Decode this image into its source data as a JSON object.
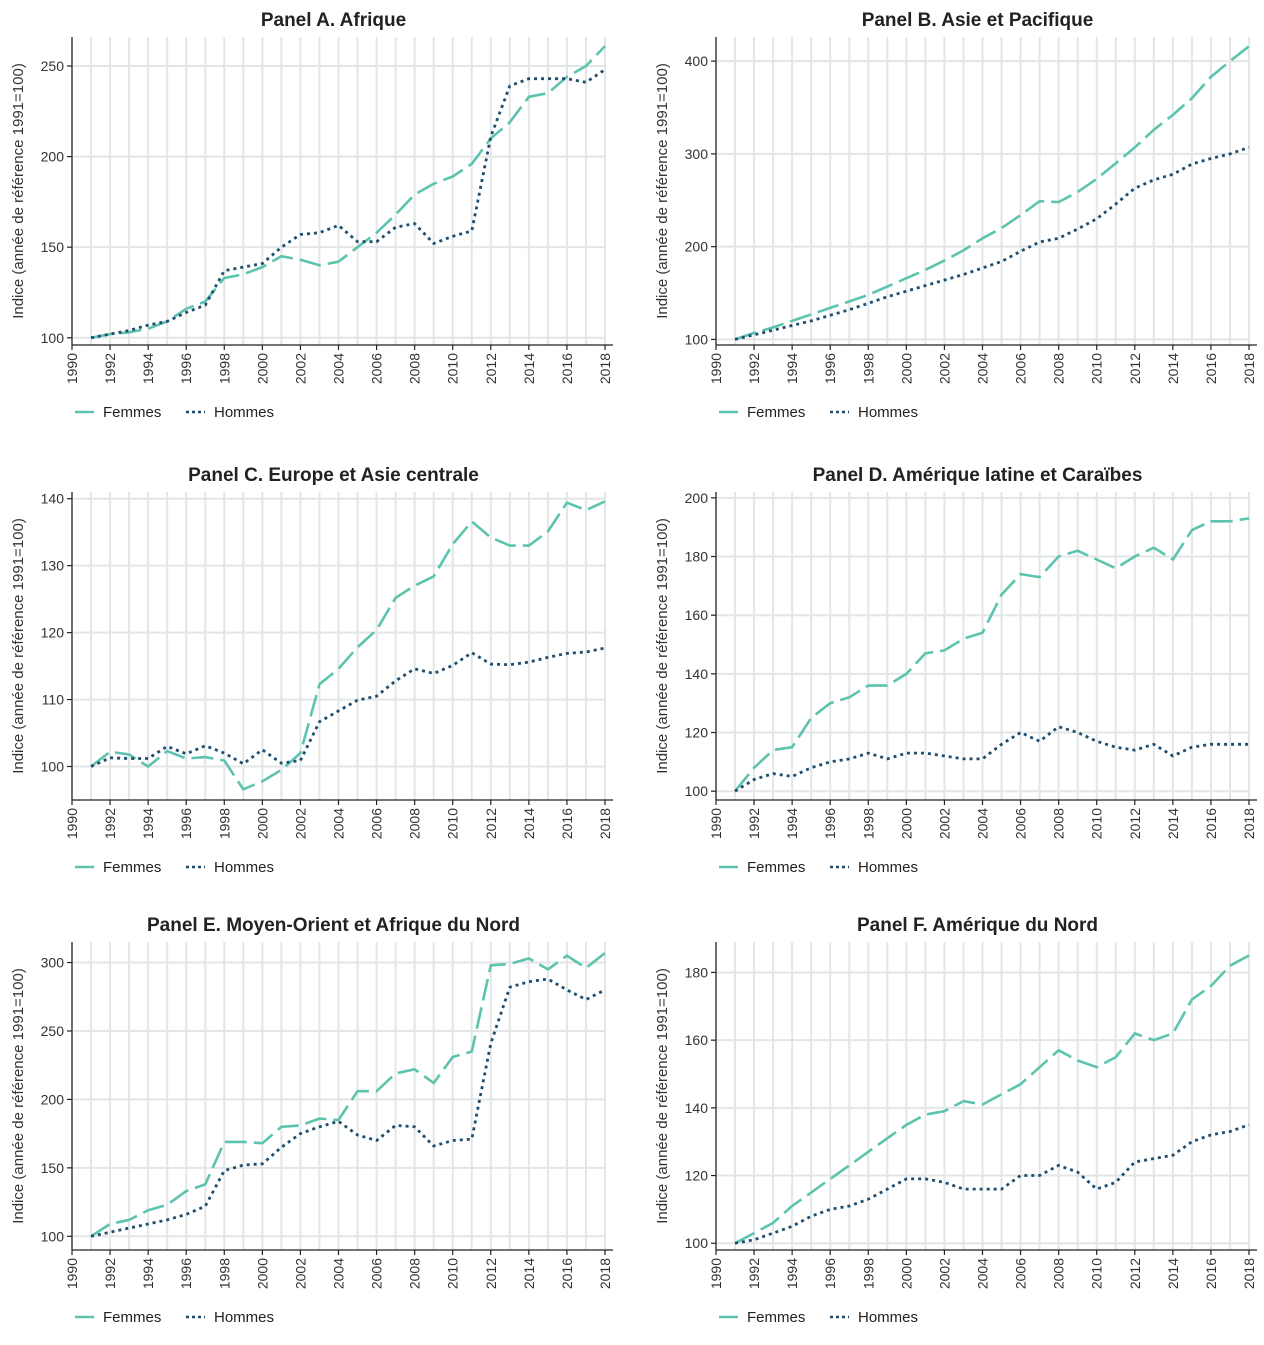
{
  "chart_data": [
    {
      "type": "line",
      "title": "Panel A. Afrique",
      "ylabel": "Indice (année de référence 1991=100)",
      "xlabel": "",
      "x": [
        1991,
        1992,
        1993,
        1994,
        1995,
        1996,
        1997,
        1998,
        1999,
        2000,
        2001,
        2002,
        2003,
        2004,
        2005,
        2006,
        2007,
        2008,
        2009,
        2010,
        2011,
        2012,
        2013,
        2014,
        2015,
        2016,
        2017,
        2018
      ],
      "xlim": [
        1990,
        2018
      ],
      "xticks": [
        1990,
        1992,
        1994,
        1996,
        1998,
        2000,
        2002,
        2004,
        2006,
        2008,
        2010,
        2012,
        2014,
        2016,
        2018
      ],
      "ylim": [
        96,
        266
      ],
      "yticks": [
        100,
        150,
        200,
        250
      ],
      "series": [
        {
          "name": "Femmes",
          "values": [
            100,
            102,
            103,
            105,
            109,
            116,
            120,
            133,
            135,
            139,
            145,
            143,
            140,
            142,
            150,
            158,
            168,
            179,
            185,
            189,
            196,
            210,
            219,
            233,
            235,
            244,
            250,
            261
          ]
        },
        {
          "name": "Hommes",
          "values": [
            100,
            102,
            104,
            107,
            109,
            114,
            118,
            137,
            139,
            141,
            150,
            157,
            158,
            162,
            153,
            153,
            161,
            163,
            152,
            156,
            159,
            211,
            239,
            243,
            243,
            243,
            241,
            248
          ]
        }
      ],
      "legend": "bottom-left",
      "grid": true
    },
    {
      "type": "line",
      "title": "Panel B. Asie et Pacifique",
      "ylabel": "Indice (année de référence 1991=100)",
      "xlabel": "",
      "x": [
        1991,
        1992,
        1993,
        1994,
        1995,
        1996,
        1997,
        1998,
        1999,
        2000,
        2001,
        2002,
        2003,
        2004,
        2005,
        2006,
        2007,
        2008,
        2009,
        2010,
        2011,
        2012,
        2013,
        2014,
        2015,
        2016,
        2017,
        2018
      ],
      "xlim": [
        1990,
        2018
      ],
      "xticks": [
        1990,
        1992,
        1994,
        1996,
        1998,
        2000,
        2002,
        2004,
        2006,
        2008,
        2010,
        2012,
        2014,
        2016,
        2018
      ],
      "ylim": [
        94,
        426
      ],
      "yticks": [
        100,
        200,
        300,
        400
      ],
      "series": [
        {
          "name": "Femmes",
          "values": [
            100,
            107,
            113,
            120,
            127,
            134,
            141,
            148,
            157,
            166,
            175,
            185,
            196,
            209,
            220,
            234,
            249,
            248,
            259,
            273,
            290,
            307,
            326,
            342,
            360,
            383,
            400,
            416
          ]
        },
        {
          "name": "Hommes",
          "values": [
            100,
            105,
            110,
            115,
            120,
            126,
            132,
            139,
            146,
            152,
            158,
            164,
            170,
            177,
            184,
            195,
            205,
            209,
            219,
            230,
            246,
            263,
            272,
            278,
            289,
            295,
            300,
            307
          ]
        }
      ],
      "legend": "bottom-left",
      "grid": true
    },
    {
      "type": "line",
      "title": "Panel C. Europe et Asie centrale",
      "ylabel": "Indice (année de référence 1991=100)",
      "xlabel": "",
      "x": [
        1991,
        1992,
        1993,
        1994,
        1995,
        1996,
        1997,
        1998,
        1999,
        2000,
        2001,
        2002,
        2003,
        2004,
        2005,
        2006,
        2007,
        2008,
        2009,
        2010,
        2011,
        2012,
        2013,
        2014,
        2015,
        2016,
        2017,
        2018
      ],
      "xlim": [
        1990,
        2018
      ],
      "xticks": [
        1990,
        1992,
        1994,
        1996,
        1998,
        2000,
        2002,
        2004,
        2006,
        2008,
        2010,
        2012,
        2014,
        2016,
        2018
      ],
      "ylim": [
        95,
        141
      ],
      "yticks": [
        100,
        110,
        120,
        130,
        140
      ],
      "series": [
        {
          "name": "Femmes",
          "values": [
            100,
            102.2,
            101.8,
            100,
            102.3,
            101.2,
            101.4,
            100.9,
            96.6,
            97.8,
            99.5,
            102,
            112.3,
            114.6,
            117.8,
            120.4,
            125.2,
            127,
            128.4,
            133.2,
            136.6,
            134.2,
            133,
            133,
            135.1,
            139.4,
            138.3,
            139.6
          ]
        },
        {
          "name": "Hommes",
          "values": [
            100,
            101.3,
            101.2,
            101.2,
            103,
            101.9,
            103.1,
            102,
            100.4,
            102.5,
            100.5,
            100.9,
            106.7,
            108.3,
            109.9,
            110.5,
            112.8,
            114.6,
            113.9,
            115.1,
            117,
            115.3,
            115.2,
            115.6,
            116.3,
            116.9,
            117.1,
            117.7
          ]
        }
      ],
      "legend": "bottom-left",
      "grid": true
    },
    {
      "type": "line",
      "title": "Panel D. Amérique latine et Caraïbes",
      "ylabel": "Indice (année de référence 1991=100)",
      "xlabel": "",
      "x": [
        1991,
        1992,
        1993,
        1994,
        1995,
        1996,
        1997,
        1998,
        1999,
        2000,
        2001,
        2002,
        2003,
        2004,
        2005,
        2006,
        2007,
        2008,
        2009,
        2010,
        2011,
        2012,
        2013,
        2014,
        2015,
        2016,
        2017,
        2018
      ],
      "xlim": [
        1990,
        2018
      ],
      "xticks": [
        1990,
        1992,
        1994,
        1996,
        1998,
        2000,
        2002,
        2004,
        2006,
        2008,
        2010,
        2012,
        2014,
        2016,
        2018
      ],
      "ylim": [
        97,
        202
      ],
      "yticks": [
        100,
        120,
        140,
        160,
        180,
        200
      ],
      "series": [
        {
          "name": "Femmes",
          "values": [
            100,
            108,
            114,
            115,
            125,
            130,
            132,
            136,
            136,
            140,
            147,
            148,
            152,
            154,
            167,
            174,
            173,
            180,
            182,
            179,
            176,
            180,
            183,
            179,
            189,
            192,
            192,
            193
          ]
        },
        {
          "name": "Hommes",
          "values": [
            100,
            104,
            106,
            105,
            108,
            110,
            111,
            113,
            111,
            113,
            113,
            112,
            111,
            111,
            116,
            120,
            117,
            122,
            120,
            117,
            115,
            114,
            116,
            112,
            115,
            116,
            116,
            116
          ]
        }
      ],
      "legend": "bottom-left",
      "grid": true
    },
    {
      "type": "line",
      "title": "Panel E. Moyen-Orient et Afrique du Nord",
      "ylabel": "Indice (année de référence 1991=100)",
      "xlabel": "",
      "x": [
        1991,
        1992,
        1993,
        1994,
        1995,
        1996,
        1997,
        1998,
        1999,
        2000,
        2001,
        2002,
        2003,
        2004,
        2005,
        2006,
        2007,
        2008,
        2009,
        2010,
        2011,
        2012,
        2013,
        2014,
        2015,
        2016,
        2017,
        2018
      ],
      "xlim": [
        1990,
        2018
      ],
      "xticks": [
        1990,
        1992,
        1994,
        1996,
        1998,
        2000,
        2002,
        2004,
        2006,
        2008,
        2010,
        2012,
        2014,
        2016,
        2018
      ],
      "ylim": [
        90,
        315
      ],
      "yticks": [
        100,
        150,
        200,
        250,
        300
      ],
      "series": [
        {
          "name": "Femmes",
          "values": [
            100,
            109,
            112,
            119,
            123,
            133,
            138,
            169,
            169,
            168,
            180,
            181,
            186,
            185,
            206,
            206,
            219,
            222,
            212,
            231,
            235,
            298,
            299,
            303,
            295,
            305,
            296,
            307
          ]
        },
        {
          "name": "Hommes",
          "values": [
            100,
            103,
            106,
            109,
            112,
            116,
            122,
            148,
            152,
            153,
            165,
            175,
            180,
            184,
            174,
            170,
            181,
            180,
            166,
            170,
            171,
            241,
            282,
            286,
            288,
            280,
            273,
            280
          ]
        }
      ],
      "legend": "bottom-left",
      "grid": true
    },
    {
      "type": "line",
      "title": "Panel F. Amérique du Nord",
      "ylabel": "Indice (année de référence 1991=100)",
      "xlabel": "",
      "x": [
        1991,
        1992,
        1993,
        1994,
        1995,
        1996,
        1997,
        1998,
        1999,
        2000,
        2001,
        2002,
        2003,
        2004,
        2005,
        2006,
        2007,
        2008,
        2009,
        2010,
        2011,
        2012,
        2013,
        2014,
        2015,
        2016,
        2017,
        2018
      ],
      "xlim": [
        1990,
        2018
      ],
      "xticks": [
        1990,
        1992,
        1994,
        1996,
        1998,
        2000,
        2002,
        2004,
        2006,
        2008,
        2010,
        2012,
        2014,
        2016,
        2018
      ],
      "ylim": [
        98,
        189
      ],
      "yticks": [
        100,
        120,
        140,
        160,
        180
      ],
      "series": [
        {
          "name": "Femmes",
          "values": [
            100,
            103,
            106,
            111,
            115,
            119,
            123,
            127,
            131,
            135,
            138,
            139,
            142,
            141,
            144,
            147,
            152,
            157,
            154,
            152,
            155,
            162,
            160,
            162,
            172,
            176,
            182,
            185
          ]
        },
        {
          "name": "Hommes",
          "values": [
            100,
            101,
            103,
            105,
            108,
            110,
            111,
            113,
            116,
            119,
            119,
            118,
            116,
            116,
            116,
            120,
            120,
            123,
            121,
            116,
            118,
            124,
            125,
            126,
            130,
            132,
            133,
            135
          ]
        }
      ],
      "legend": "bottom-left",
      "grid": true
    }
  ],
  "colors": {
    "femmes": "#5cc4ae",
    "hommes": "#1f4e6e"
  }
}
